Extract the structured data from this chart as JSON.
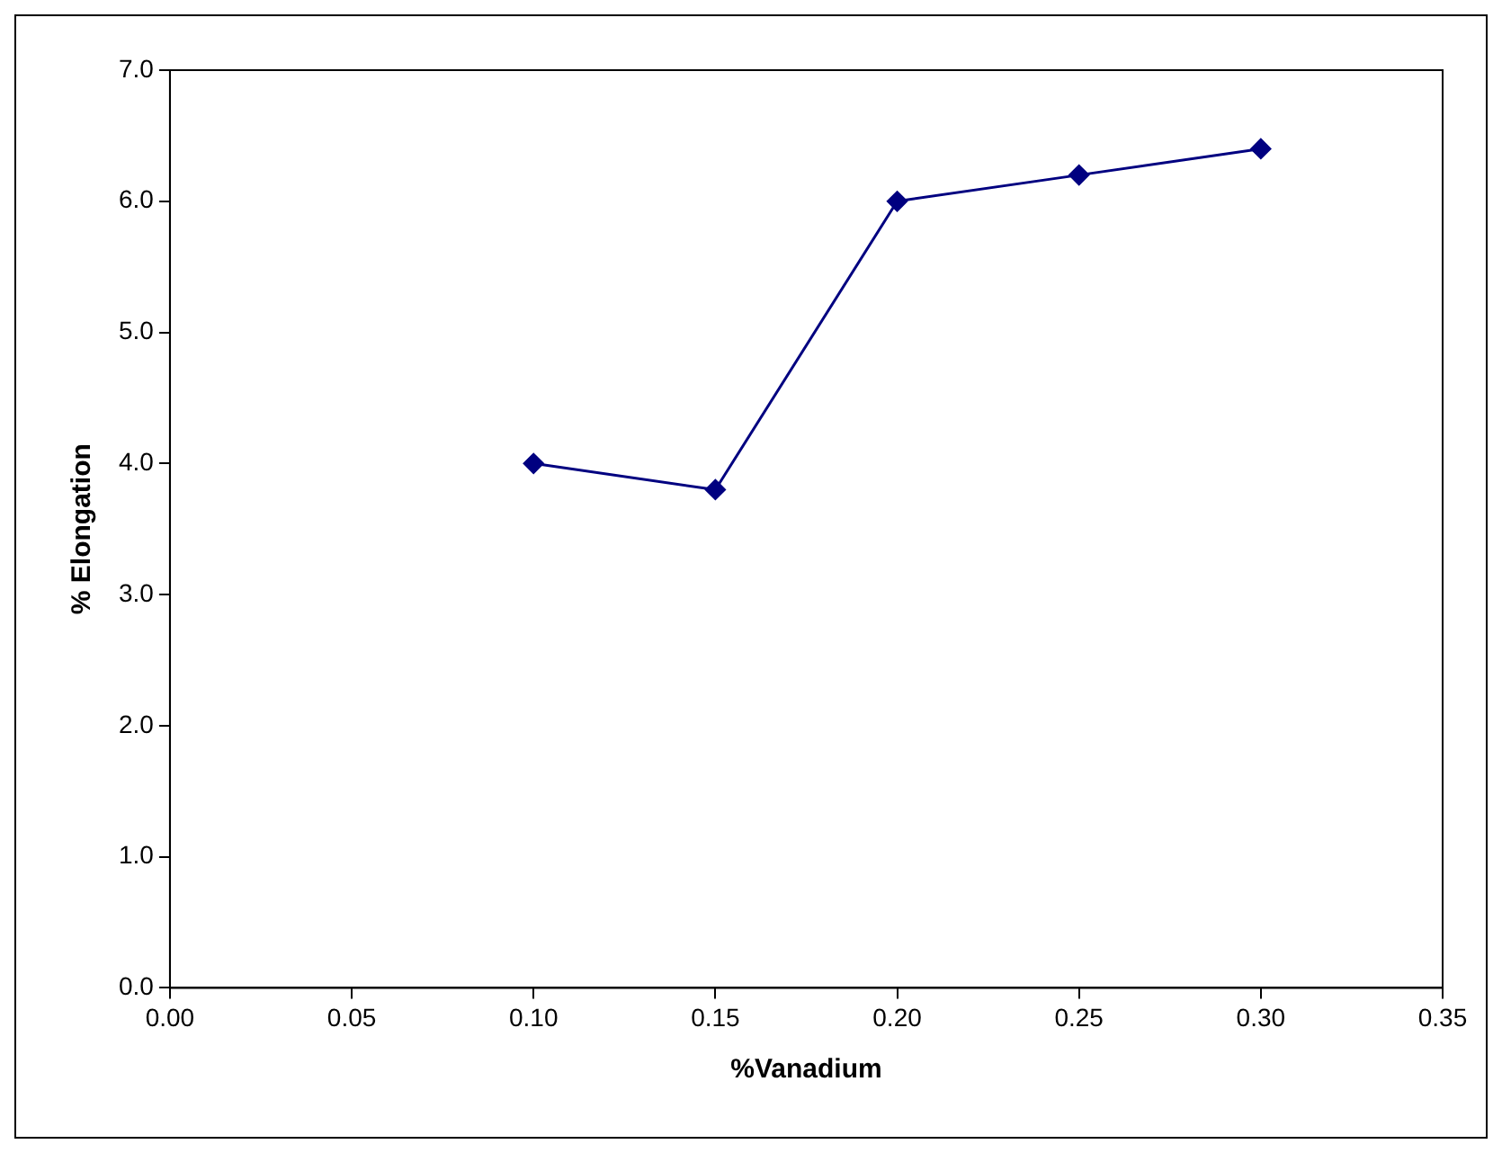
{
  "chart_data": {
    "type": "line",
    "xlabel": "%Vanadium",
    "ylabel": "% Elongation",
    "x": [
      0.1,
      0.15,
      0.2,
      0.25,
      0.3
    ],
    "series": [
      {
        "color": "#000080",
        "values": [
          4.0,
          3.8,
          6.0,
          6.2,
          6.4
        ]
      }
    ],
    "xlim": [
      0,
      0.35
    ],
    "xticks": [
      {
        "value": 0,
        "label": "0.00"
      },
      {
        "value": 0.05,
        "label": "0.05"
      },
      {
        "value": 0.1,
        "label": "0.10"
      },
      {
        "value": 0.15,
        "label": "0.15"
      },
      {
        "value": 0.2,
        "label": "0.20"
      },
      {
        "value": 0.25,
        "label": "0.25"
      },
      {
        "value": 0.3,
        "label": "0.30"
      },
      {
        "value": 0.35,
        "label": "0.35"
      }
    ],
    "ylim": [
      0,
      7
    ],
    "yticks": [
      {
        "value": 0,
        "label": "0.0"
      },
      {
        "value": 1,
        "label": "1.0"
      },
      {
        "value": 2,
        "label": "2.0"
      },
      {
        "value": 3,
        "label": "3.0"
      },
      {
        "value": 4,
        "label": "4.0"
      },
      {
        "value": 5,
        "label": "5.0"
      },
      {
        "value": 6,
        "label": "6.0"
      },
      {
        "value": 7,
        "label": "7.0"
      }
    ],
    "grid": false,
    "legend": false,
    "marker": "diamond",
    "line_style": "solid"
  }
}
